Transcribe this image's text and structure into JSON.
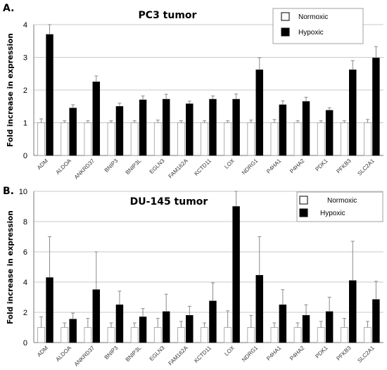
{
  "colors": {
    "normoxic": "#ffffff",
    "hypoxic": "#000000",
    "error_bar": "#8a8a8a",
    "grid": "#c8c8c8"
  },
  "chart_data": [
    {
      "panel": "A.",
      "type": "bar",
      "title": "PC3 tumor",
      "xlabel": "",
      "ylabel": "Fold increase in expression",
      "ylim": [
        0,
        4
      ],
      "yticks": [
        0,
        1,
        2,
        3,
        4
      ],
      "grid": true,
      "legend_position": "top-right",
      "categories": [
        "ADM",
        "ALDOA",
        "ANKRD37",
        "BNIP3",
        "BNIP3L",
        "EGLN3",
        "FAM162A",
        "KCTD11",
        "LOX",
        "NDRG1",
        "P4HA1",
        "P4HA2",
        "PDK1",
        "PFKB3",
        "SLC2A1"
      ],
      "series": [
        {
          "name": "Normoxic",
          "color": "#ffffff",
          "values": [
            1,
            1,
            1,
            1,
            1,
            1,
            1,
            1,
            1,
            1,
            1,
            1,
            1,
            1,
            1
          ],
          "errors": [
            0.12,
            0.06,
            0.06,
            0.06,
            0.06,
            0.08,
            0.06,
            0.06,
            0.06,
            0.08,
            0.1,
            0.06,
            0.06,
            0.06,
            0.1
          ]
        },
        {
          "name": "Hypoxic",
          "color": "#000000",
          "values": [
            3.7,
            1.45,
            2.25,
            1.5,
            1.7,
            1.72,
            1.58,
            1.72,
            1.72,
            2.62,
            1.55,
            1.65,
            1.38,
            2.62,
            2.98
          ],
          "errors": [
            0.45,
            0.1,
            0.18,
            0.1,
            0.12,
            0.15,
            0.08,
            0.1,
            0.16,
            0.37,
            0.12,
            0.13,
            0.08,
            0.28,
            0.35
          ]
        }
      ]
    },
    {
      "panel": "B.",
      "type": "bar",
      "title": "DU-145 tumor",
      "xlabel": "",
      "ylabel": "Fold increase in expression",
      "ylim": [
        0,
        10
      ],
      "yticks": [
        0,
        2,
        4,
        6,
        8,
        10
      ],
      "grid": true,
      "legend_position": "top-right",
      "categories": [
        "ADM",
        "ALDOA",
        "ANKRD37",
        "BNIP3",
        "BNIP3L",
        "EGLN3",
        "FAM162A",
        "KCTD11",
        "LOX",
        "NDRG1",
        "P4HA1",
        "P4HA2",
        "PDK1",
        "PFKB3",
        "SLC2A1"
      ],
      "series": [
        {
          "name": "Normoxic",
          "color": "#ffffff",
          "values": [
            1,
            1,
            1,
            1,
            1,
            1,
            1,
            1,
            1,
            1,
            1,
            1,
            1,
            1,
            1
          ],
          "errors": [
            0.7,
            0.3,
            0.6,
            0.3,
            0.3,
            0.6,
            0.4,
            0.3,
            1.1,
            0.8,
            0.3,
            0.3,
            0.4,
            0.6,
            0.4
          ]
        },
        {
          "name": "Hypoxic",
          "color": "#000000",
          "values": [
            4.3,
            1.55,
            3.5,
            2.5,
            1.7,
            2.05,
            1.8,
            2.75,
            9.0,
            4.45,
            2.5,
            1.8,
            2.05,
            4.1,
            2.85
          ],
          "errors": [
            2.7,
            0.4,
            2.5,
            0.9,
            0.55,
            1.15,
            0.6,
            1.2,
            1.2,
            2.55,
            1.0,
            0.7,
            0.95,
            2.6,
            1.2
          ]
        }
      ]
    }
  ]
}
